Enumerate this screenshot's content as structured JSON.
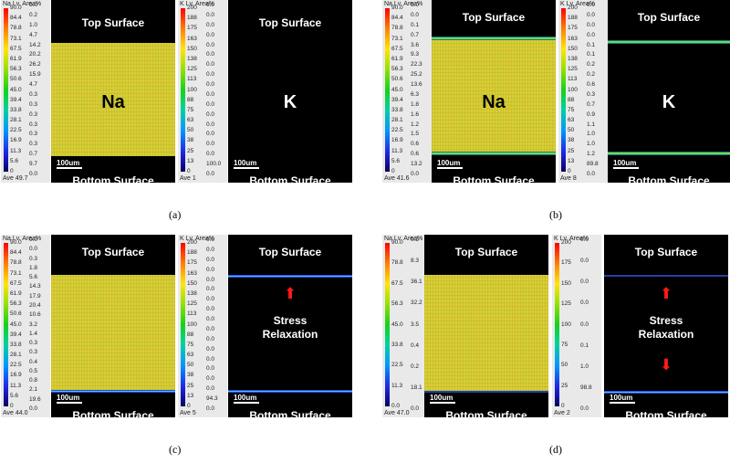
{
  "panels": [
    {
      "caption": "(a)",
      "na_title": "Na Lv. Area%",
      "na_levels": [
        "90.0",
        "84.4",
        "78.8",
        "73.1",
        "67.5",
        "61.9",
        "56.3",
        "50.6",
        "45.0",
        "39.4",
        "33.8",
        "28.1",
        "22.5",
        "16.9",
        "11.3",
        "5.6",
        "0"
      ],
      "na_areas": [
        "0.0",
        "0.2",
        "1.0",
        "4.7",
        "14.2",
        "20.2",
        "26.2",
        "15.9",
        "4.7",
        "0.3",
        "0.3",
        "0.3",
        "0.3",
        "0.3",
        "0.3",
        "0.7",
        "9.7",
        "0.0"
      ],
      "na_ave": "Ave 49.7",
      "k_title": "K Lv. Area%",
      "k_levels": [
        "200",
        "188",
        "175",
        "163",
        "150",
        "138",
        "125",
        "113",
        "100",
        "88",
        "75",
        "63",
        "50",
        "38",
        "25",
        "13",
        "0"
      ],
      "k_areas": [
        "0.0",
        "0.0",
        "0.0",
        "0.0",
        "0.0",
        "0.0",
        "0.0",
        "0.0",
        "0.0",
        "0.0",
        "0.0",
        "0.0",
        "0.0",
        "0.0",
        "0.0",
        "0.0",
        "100.0",
        "0.0"
      ],
      "k_ave": "Ave 1",
      "top_label": "Top Surface",
      "bottom_label": "Bottom Surface",
      "na_symbol": "Na",
      "k_symbol": "K",
      "scale_bar": "100um",
      "scale_bar_k": "100um"
    },
    {
      "caption": "(b)",
      "na_title": "Na Lv. Area%",
      "na_levels": [
        "90.0",
        "84.4",
        "78.8",
        "73.1",
        "67.5",
        "61.9",
        "56.3",
        "50.6",
        "45.0",
        "39.4",
        "33.8",
        "28.1",
        "22.5",
        "16.9",
        "11.3",
        "5.6",
        "0"
      ],
      "na_areas": [
        "0.0",
        "0.0",
        "0.1",
        "0.7",
        "3.6",
        "9.3",
        "22.3",
        "25.2",
        "13.6",
        "6.3",
        "1.8",
        "1.6",
        "1.2",
        "1.5",
        "0.6",
        "0.6",
        "13.2",
        "0.0"
      ],
      "na_ave": "Ave 41.6",
      "k_title": "K Lv. Area%",
      "k_levels": [
        "200",
        "188",
        "175",
        "163",
        "150",
        "138",
        "125",
        "113",
        "100",
        "88",
        "75",
        "63",
        "50",
        "38",
        "25",
        "13",
        "0"
      ],
      "k_areas": [
        "0.0",
        "0.0",
        "0.0",
        "0.0",
        "0.1",
        "0.1",
        "0.2",
        "0.2",
        "0.6",
        "0.3",
        "0.7",
        "0.9",
        "1.1",
        "1.0",
        "1.0",
        "1.2",
        "89.8",
        "0.0"
      ],
      "k_ave": "Ave 8",
      "top_label": "Top Surface",
      "bottom_label": "Bottom Surface",
      "na_symbol": "Na",
      "k_symbol": "K",
      "scale_bar": "100um",
      "scale_bar_k": "100um"
    },
    {
      "caption": "(c)",
      "na_title": "Na Lv. Area%",
      "na_levels": [
        "90.0",
        "84.4",
        "78.8",
        "73.1",
        "67.5",
        "61.9",
        "56.3",
        "50.6",
        "45.0",
        "39.4",
        "33.8",
        "28.1",
        "22.5",
        "16.9",
        "11.3",
        "5.6",
        "0"
      ],
      "na_areas": [
        "0.0",
        "0.0",
        "0.3",
        "1.8",
        "5.6",
        "14.3",
        "17.9",
        "20.4",
        "10.6",
        "3.2",
        "1.4",
        "0.3",
        "0.3",
        "0.4",
        "0.5",
        "0.8",
        "2.1",
        "19.6",
        "0.0"
      ],
      "na_ave": "Ave 44.0",
      "k_title": "K Lv. Area%",
      "k_levels": [
        "200",
        "188",
        "175",
        "163",
        "150",
        "138",
        "125",
        "113",
        "100",
        "88",
        "75",
        "63",
        "50",
        "38",
        "25",
        "13",
        "0"
      ],
      "k_areas": [
        "0.0",
        "0.0",
        "0.0",
        "0.0",
        "0.0",
        "0.0",
        "0.0",
        "0.0",
        "0.0",
        "0.0",
        "0.0",
        "0.0",
        "0.0",
        "0.0",
        "0.0",
        "0.0",
        "94.3",
        "0.0"
      ],
      "k_ave": "Ave 5",
      "top_label": "Top Surface",
      "bottom_label": "Bottom Surface",
      "stress_text": "Stress Relaxation",
      "scale_bar": "100um",
      "scale_bar_k": "100um"
    },
    {
      "caption": "(d)",
      "na_title": "Na Lv. Area%",
      "na_levels": [
        "90.0",
        "78.8",
        "67.5",
        "56.3",
        "45.0",
        "33.8",
        "22.5",
        "11.3",
        "0.0"
      ],
      "na_areas": [
        "0.5",
        "8.3",
        "36.1",
        "32.2",
        "3.5",
        "0.4",
        "0.2",
        "18.1",
        "0.0"
      ],
      "na_ave": "Ave 47.0",
      "k_title": "K Lv. Area%",
      "k_levels": [
        "200",
        "175",
        "150",
        "125",
        "100",
        "75",
        "50",
        "25",
        "0"
      ],
      "k_areas": [
        "0.0",
        "0.0",
        "0.0",
        "0.0",
        "0.0",
        "0.1",
        "1.0",
        "98.8",
        "0.0"
      ],
      "k_ave": "Ave 2",
      "top_label": "Top Surface",
      "bottom_label": "Bottom Surface",
      "stress_text": "Stress Relaxation",
      "scale_bar": "100um",
      "scale_bar_k": "100um"
    }
  ]
}
